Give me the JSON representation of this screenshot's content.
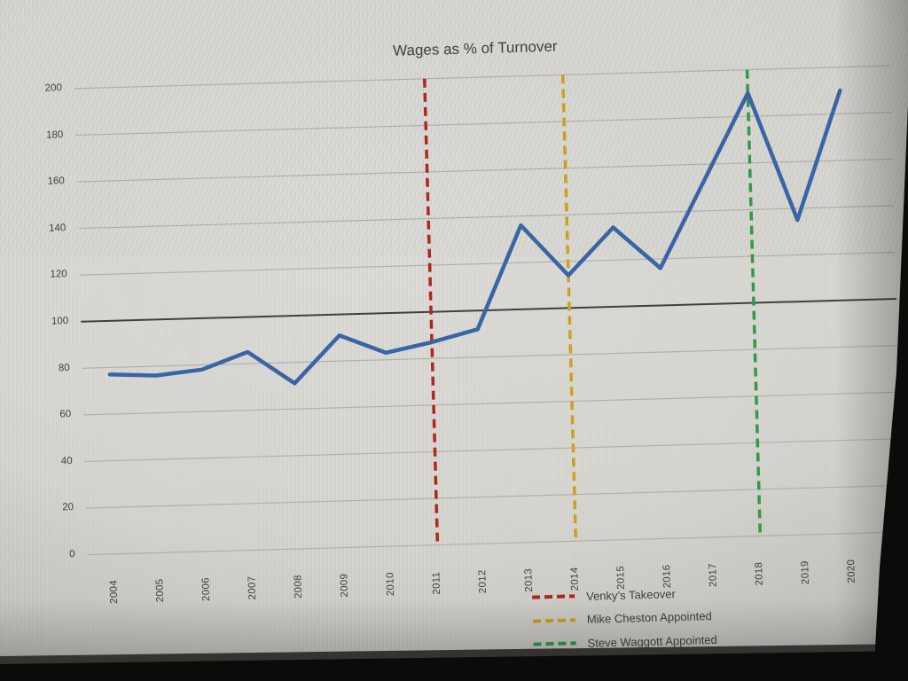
{
  "chart_data": {
    "type": "line",
    "title": "Wages as % of Turnover",
    "x_labels": [
      "2004",
      "2005",
      "2006",
      "2007",
      "2008",
      "2009",
      "2010",
      "2011",
      "2012",
      "2013",
      "2014",
      "2015",
      "2016",
      "2017",
      "2018",
      "2019",
      "2020"
    ],
    "series": [
      {
        "name": "Wages as % of Turnover",
        "color": "#3564a8",
        "values": [
          77,
          76,
          78,
          85,
          71,
          91,
          83,
          87,
          92,
          136,
          114,
          134,
          116,
          153,
          190,
          135,
          190
        ]
      }
    ],
    "ylim": [
      0,
      200
    ],
    "ytick_interval": 20,
    "ytick_labels": [
      "0",
      "20",
      "40",
      "60",
      "80",
      "100",
      "120",
      "140",
      "160",
      "180",
      "200"
    ],
    "reference_line": {
      "value": 100,
      "color": "#3d3d3b"
    },
    "gridline_color": "#b3b1ab",
    "grid": true,
    "legend_position": "bottom",
    "annotations": [
      {
        "label": "Venky’s Takeover",
        "x_label": "2011",
        "color": "#b2231b",
        "style": "dashed"
      },
      {
        "label": "Mike Cheston Appointed",
        "x_label": "2014",
        "color": "#cda21c",
        "style": "dashed"
      },
      {
        "label": "Steve Waggott Appointed",
        "x_label": "2018",
        "color": "#2f9b45",
        "style": "dashed"
      }
    ]
  }
}
